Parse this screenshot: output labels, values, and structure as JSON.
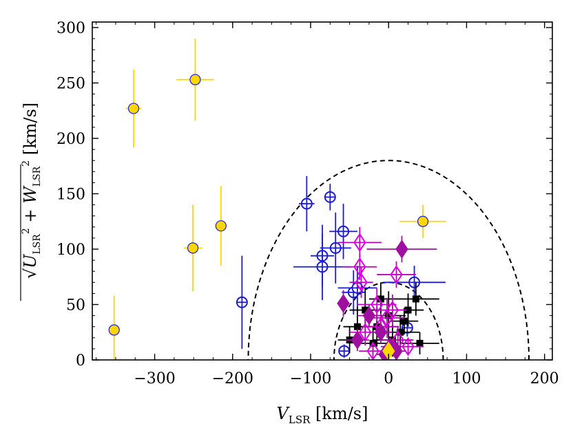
{
  "chart_data": {
    "type": "scatter",
    "xlabel": "V_LSR [km/s]",
    "ylabel": "sqrt(U_LSR^2 + W_LSR^2) [km/s]",
    "xlim": [
      -380,
      210
    ],
    "ylim": [
      0,
      305
    ],
    "xticks": [
      -300,
      -200,
      -100,
      0,
      100,
      200
    ],
    "yticks": [
      0,
      50,
      100,
      150,
      200,
      250,
      300
    ],
    "xtick_labels": [
      "−300",
      "−200",
      "−100",
      "0",
      "100",
      "200"
    ],
    "ytick_labels": [
      "0",
      "50",
      "100",
      "150",
      "200",
      "250",
      "300"
    ],
    "grid": false,
    "curves": [
      {
        "type": "dashed-semicircle",
        "radius": 180
      },
      {
        "type": "dashed-semicircle",
        "radius": 70
      }
    ],
    "series": [
      {
        "marker": "filled-circle",
        "color": "#ffd700",
        "edge": "#1a1adb",
        "errcolor": "#ffd700",
        "points": [
          {
            "x": -352,
            "y": 27,
            "xerr": 0,
            "yerr": 31
          },
          {
            "x": -327,
            "y": 227,
            "xerr": 10,
            "yerr": 35
          },
          {
            "x": -248,
            "y": 253,
            "xerr": 24,
            "yerr": 37
          },
          {
            "x": -251,
            "y": 101,
            "xerr": 12,
            "yerr": 39
          },
          {
            "x": -215,
            "y": 121,
            "xerr": 5,
            "yerr": 36
          },
          {
            "x": 44,
            "y": 125,
            "xerr": 30,
            "yerr": 15
          }
        ]
      },
      {
        "marker": "open-circle-plus",
        "color": "#1a1adb",
        "errcolor": "#1a1adb",
        "points": [
          {
            "x": -188,
            "y": 52,
            "xerr": 0,
            "yerr": 42
          },
          {
            "x": -105,
            "y": 141,
            "xerr": 10,
            "yerr": 25
          },
          {
            "x": -75,
            "y": 147,
            "xerr": 4,
            "yerr": 12
          },
          {
            "x": -85,
            "y": 94,
            "xerr": 15,
            "yerr": 28
          },
          {
            "x": -85,
            "y": 84,
            "xerr": 37,
            "yerr": 30
          },
          {
            "x": -68,
            "y": 101,
            "xerr": 20,
            "yerr": 32
          },
          {
            "x": -58,
            "y": 116,
            "xerr": 18,
            "yerr": 25
          },
          {
            "x": -45,
            "y": 61,
            "xerr": 15,
            "yerr": 20
          },
          {
            "x": -40,
            "y": 65,
            "xerr": 25,
            "yerr": 20
          },
          {
            "x": -57,
            "y": 8,
            "xerr": 5,
            "yerr": 6
          },
          {
            "x": 24,
            "y": 29,
            "xerr": 6,
            "yerr": 8
          },
          {
            "x": 33,
            "y": 70,
            "xerr": 40,
            "yerr": 15
          }
        ]
      },
      {
        "marker": "filled-square",
        "color": "#000000",
        "errcolor": "#000000",
        "points": [
          {
            "x": -30,
            "y": 45,
            "xerr": 20,
            "yerr": 20
          },
          {
            "x": -15,
            "y": 30,
            "xerr": 28,
            "yerr": 18
          },
          {
            "x": 0,
            "y": 40,
            "xerr": 22,
            "yerr": 22
          },
          {
            "x": 15,
            "y": 25,
            "xerr": 25,
            "yerr": 15
          },
          {
            "x": 35,
            "y": 55,
            "xerr": 30,
            "yerr": 15
          },
          {
            "x": -40,
            "y": 30,
            "xerr": 18,
            "yerr": 18
          },
          {
            "x": -20,
            "y": 15,
            "xerr": 20,
            "yerr": 15
          },
          {
            "x": 5,
            "y": 18,
            "xerr": 25,
            "yerr": 15
          },
          {
            "x": 25,
            "y": 45,
            "xerr": 20,
            "yerr": 15
          },
          {
            "x": -10,
            "y": 55,
            "xerr": 15,
            "yerr": 15
          },
          {
            "x": -50,
            "y": 18,
            "xerr": 15,
            "yerr": 12
          },
          {
            "x": 40,
            "y": 15,
            "xerr": 25,
            "yerr": 10
          },
          {
            "x": 20,
            "y": 35,
            "xerr": 18,
            "yerr": 12
          }
        ]
      },
      {
        "marker": "open-diamond",
        "color": "#e000e0",
        "errcolor": "#c000c0",
        "points": [
          {
            "x": -37,
            "y": 106,
            "xerr": 28,
            "yerr": 14
          },
          {
            "x": -37,
            "y": 84,
            "xerr": 22,
            "yerr": 12
          },
          {
            "x": -35,
            "y": 70,
            "xerr": 15,
            "yerr": 14
          },
          {
            "x": 10,
            "y": 77,
            "xerr": 25,
            "yerr": 12
          },
          {
            "x": -15,
            "y": 50,
            "xerr": 25,
            "yerr": 15
          },
          {
            "x": -2,
            "y": 38,
            "xerr": 22,
            "yerr": 18
          },
          {
            "x": 5,
            "y": 45,
            "xerr": 18,
            "yerr": 14
          },
          {
            "x": -30,
            "y": 25,
            "xerr": 20,
            "yerr": 12
          },
          {
            "x": 12,
            "y": 18,
            "xerr": 20,
            "yerr": 12
          },
          {
            "x": -20,
            "y": 8,
            "xerr": 18,
            "yerr": 8
          },
          {
            "x": 25,
            "y": 12,
            "xerr": 20,
            "yerr": 8
          },
          {
            "x": -10,
            "y": 30,
            "xerr": 22,
            "yerr": 12
          }
        ]
      },
      {
        "marker": "filled-diamond",
        "color": "#a010a0",
        "errcolor": "#a010a0",
        "points": [
          {
            "x": -58,
            "y": 51,
            "xerr": 8,
            "yerr": 12
          },
          {
            "x": 17,
            "y": 100,
            "xerr": 45,
            "yerr": 12
          },
          {
            "x": -40,
            "y": 18,
            "xerr": 15,
            "yerr": 10
          },
          {
            "x": -10,
            "y": 25,
            "xerr": 15,
            "yerr": 10
          },
          {
            "x": 2,
            "y": 12,
            "xerr": 12,
            "yerr": 8
          },
          {
            "x": -25,
            "y": 40,
            "xerr": 15,
            "yerr": 10
          },
          {
            "x": 10,
            "y": 8,
            "xerr": 12,
            "yerr": 6
          },
          {
            "x": -5,
            "y": 5,
            "xerr": 10,
            "yerr": 5
          }
        ]
      },
      {
        "marker": "filled-diamond",
        "color": "#ffd700",
        "errcolor": "#ffd700",
        "points": [
          {
            "x": 0,
            "y": 8,
            "xerr": 0,
            "yerr": 0
          }
        ]
      }
    ]
  }
}
